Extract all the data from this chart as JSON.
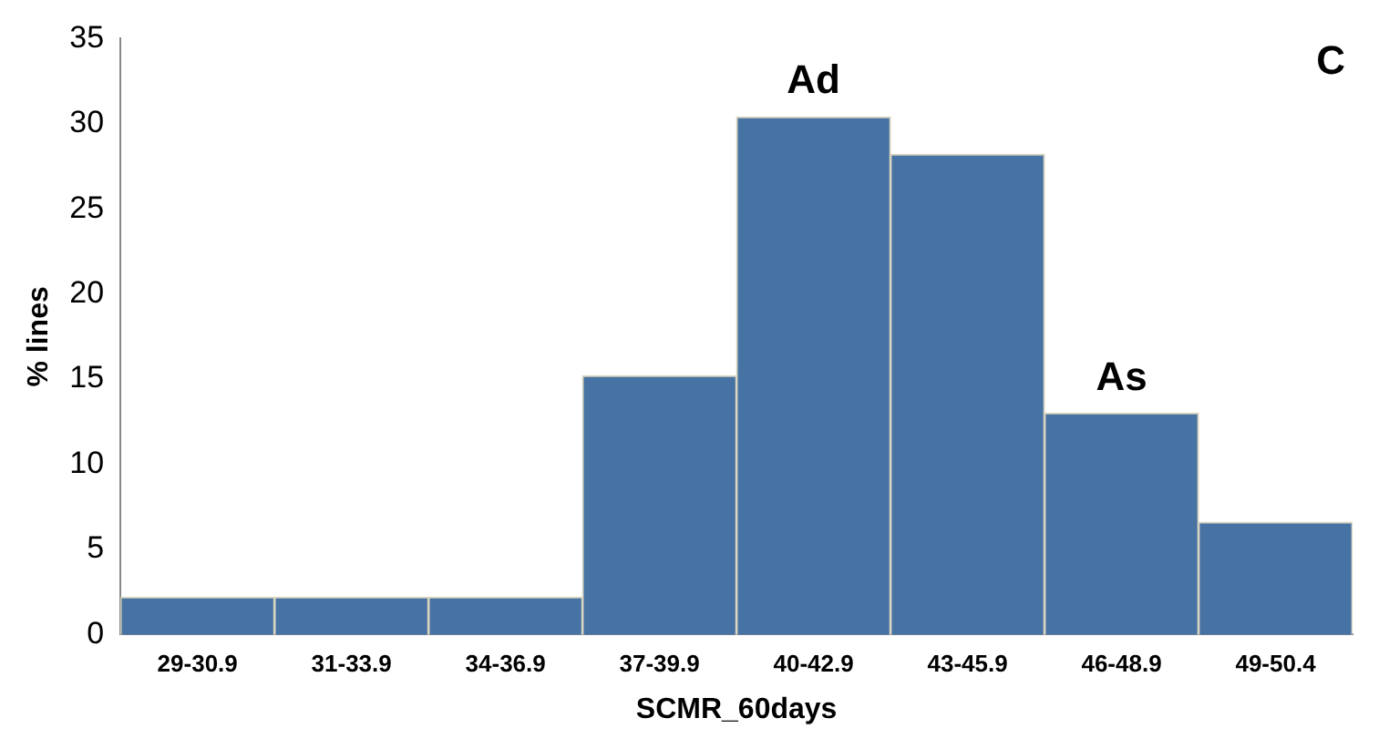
{
  "chart_data": {
    "type": "bar",
    "xlabel": "SCMR_60days",
    "ylabel": "% lines",
    "categories": [
      "29-30.9",
      "31-33.9",
      "34-36.9",
      "37-39.9",
      "40-42.9",
      "43-45.9",
      "46-48.9",
      "49-50.4"
    ],
    "values": [
      2.2,
      2.2,
      2.2,
      15.2,
      30.4,
      28.2,
      13,
      6.6
    ],
    "color": "#4672a4",
    "ylim": [
      0,
      35
    ],
    "yticks": [
      0,
      5,
      10,
      15,
      20,
      25,
      30,
      35
    ],
    "grid": false,
    "legend": false,
    "annotations": [
      {
        "text": "Ad",
        "x": "40-42.9",
        "y": 30.4
      },
      {
        "text": "As",
        "x": "46-48.9",
        "y": 13
      },
      "C"
    ]
  }
}
